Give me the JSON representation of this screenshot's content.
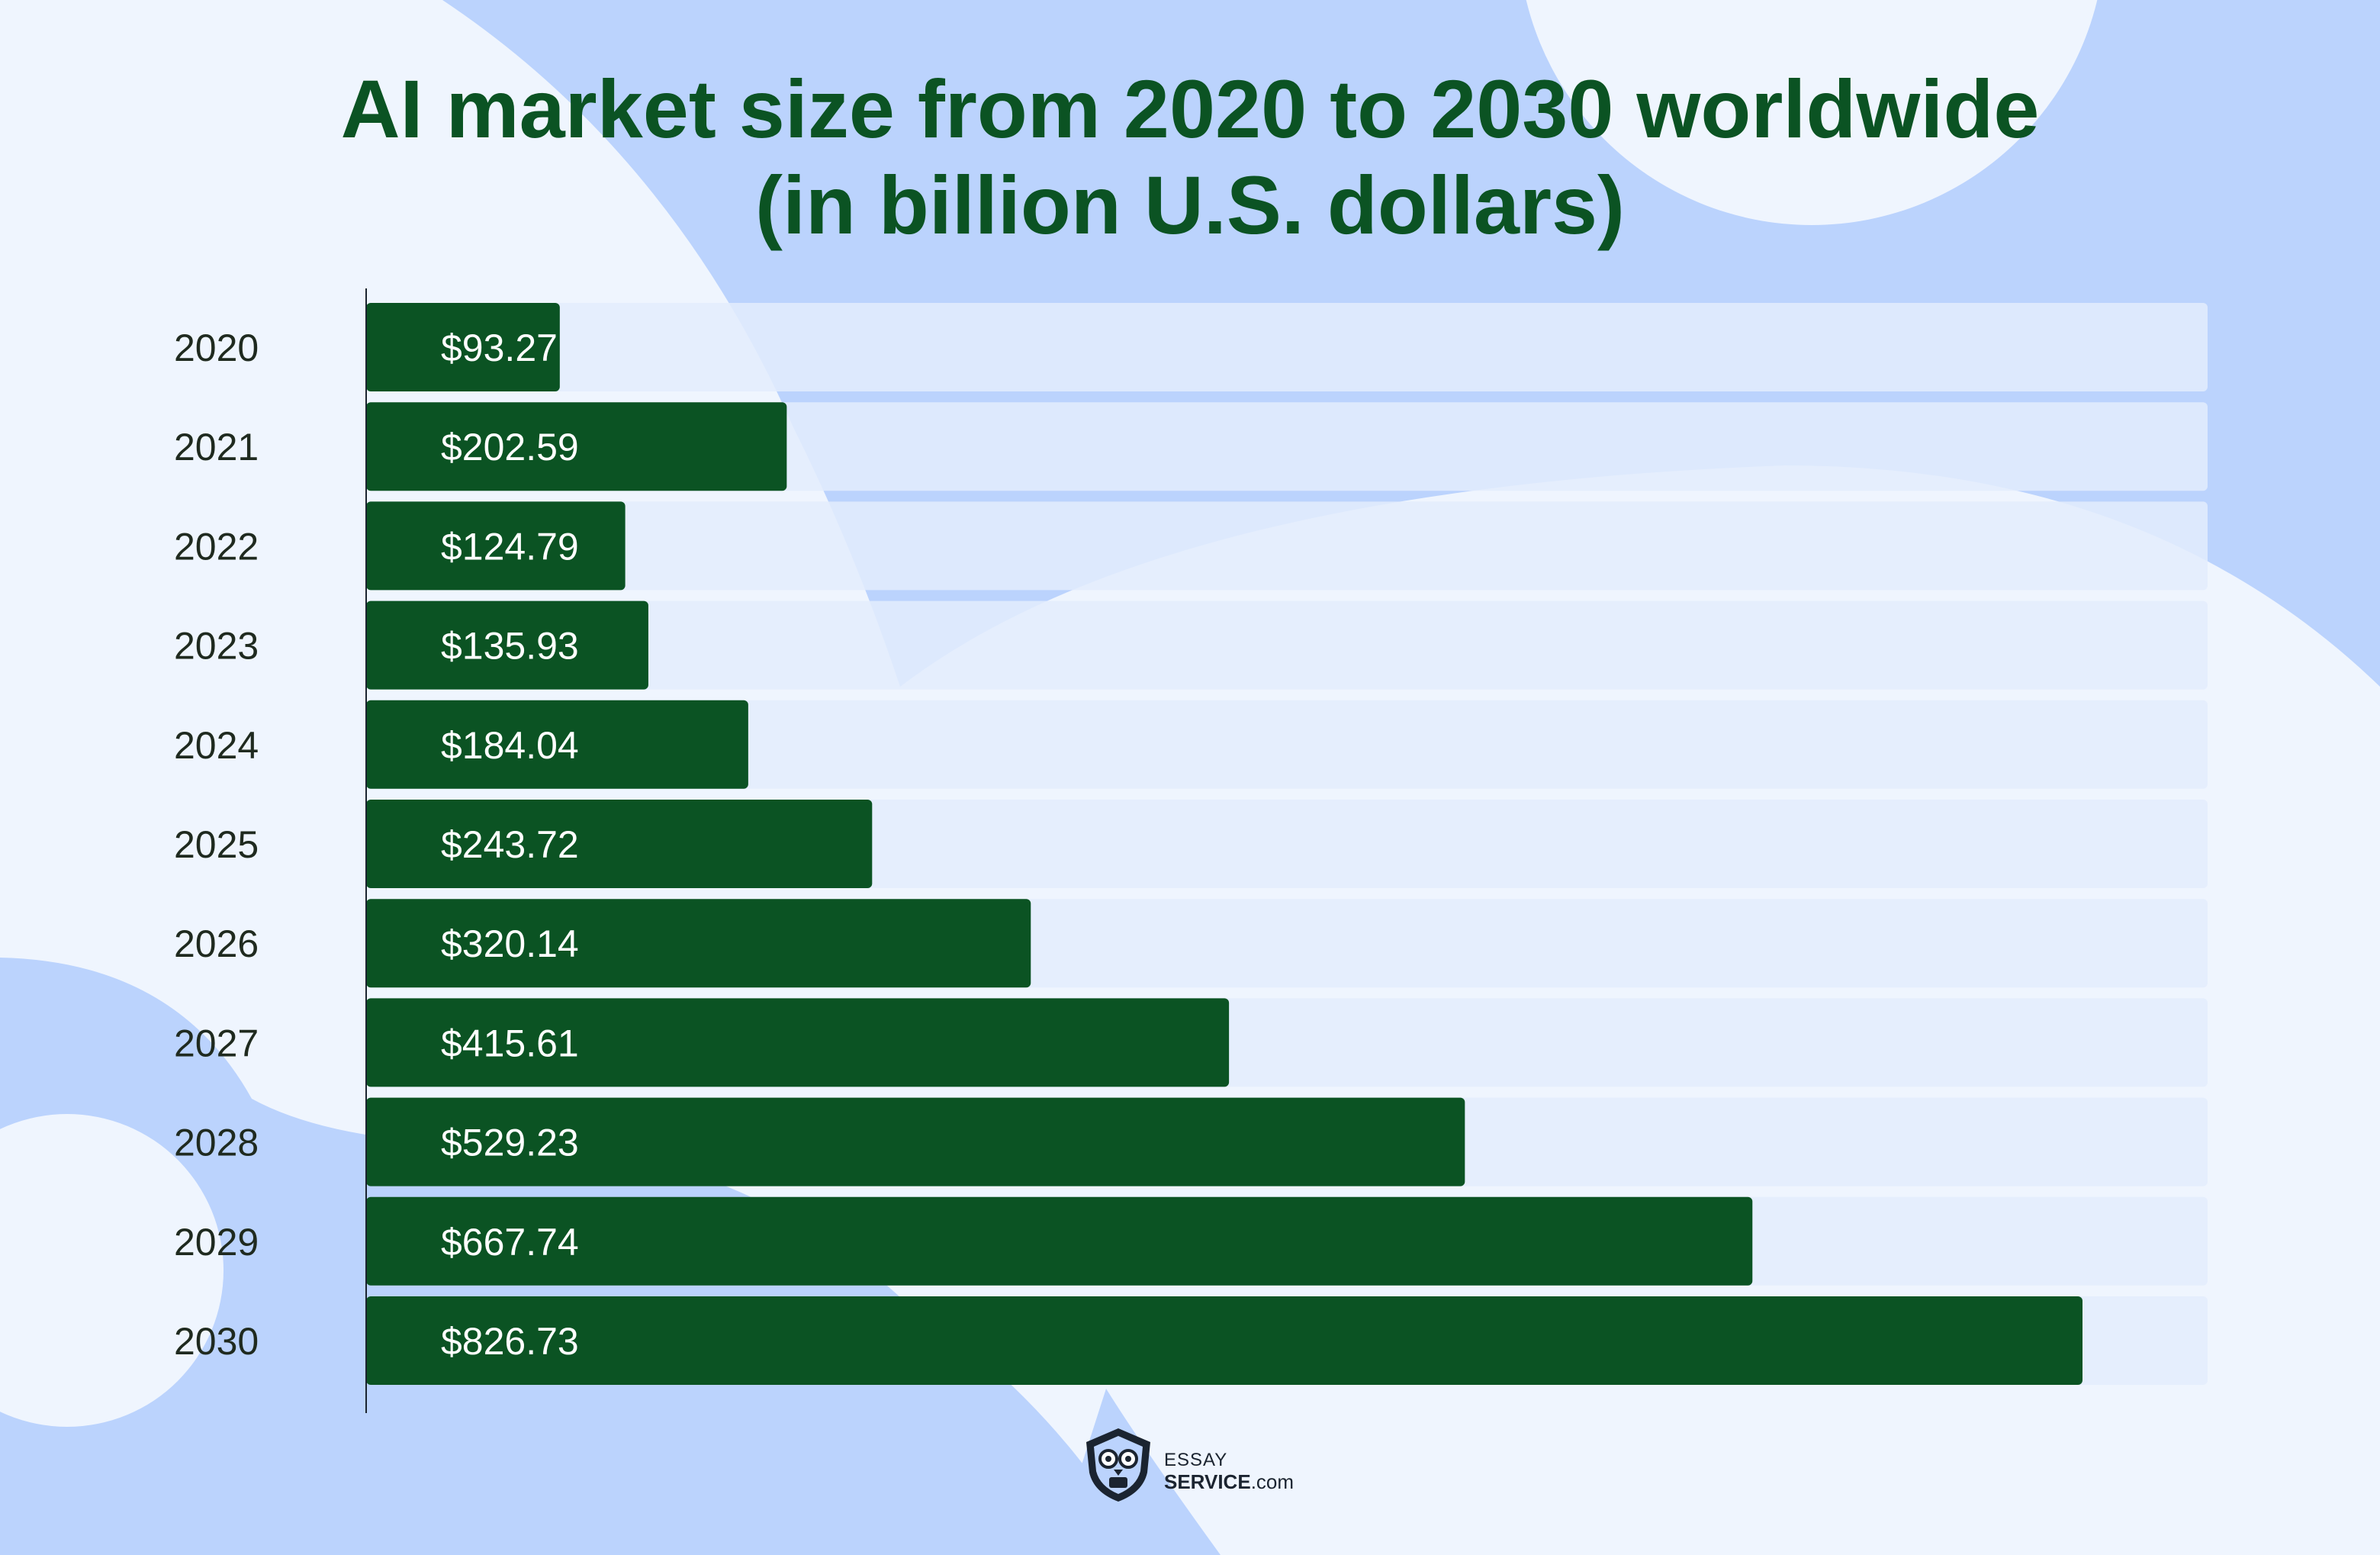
{
  "title_line1": "AI market size from 2020 to 2030 worldwide",
  "title_line2": "(in billion U.S. dollars)",
  "logo": {
    "line1": "ESSAY",
    "line2_bold": "SERVICE",
    "line2_rest": ".com"
  },
  "colors": {
    "bar": "#0b5323",
    "track": "#e3ecfd",
    "background": "#eff5fe",
    "blob": "#bbd3fd",
    "title": "#0b5323"
  },
  "chart_data": {
    "type": "bar",
    "orientation": "horizontal",
    "title": "AI market size from 2020 to 2030 worldwide (in billion U.S. dollars)",
    "categories": [
      "2020",
      "2021",
      "2022",
      "2023",
      "2024",
      "2025",
      "2026",
      "2027",
      "2028",
      "2029",
      "2030"
    ],
    "values": [
      93.27,
      202.59,
      124.79,
      135.93,
      184.04,
      243.72,
      320.14,
      415.61,
      529.23,
      667.74,
      826.73
    ],
    "value_labels": [
      "$93.27",
      "$202.59",
      "$124.79",
      "$135.93",
      "$184.04",
      "$243.72",
      "$320.14",
      "$415.61",
      "$529.23",
      "$667.74",
      "$826.73"
    ],
    "xlim": [
      0,
      900
    ],
    "grid": false,
    "legend": "none"
  }
}
